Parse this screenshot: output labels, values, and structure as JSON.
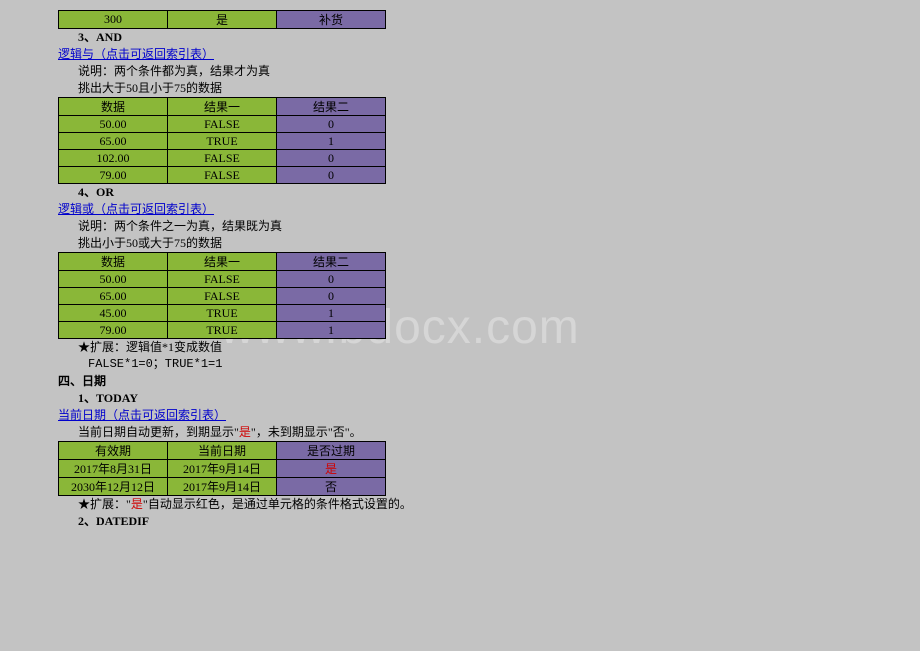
{
  "watermark": "www.bdocx.com",
  "topRow": {
    "c1": "300",
    "c2": "是",
    "c3": "补货"
  },
  "sec_and": {
    "heading": "3、AND",
    "link": "逻辑与（点击可返回索引表）",
    "desc": "说明：两个条件都为真，结果才为真",
    "rule": "挑出大于50且小于75的数据",
    "headers": [
      "数据",
      "结果一",
      "结果二"
    ],
    "rows": [
      {
        "d": "50.00",
        "r1": "FALSE",
        "r2": "0"
      },
      {
        "d": "65.00",
        "r1": "TRUE",
        "r2": "1"
      },
      {
        "d": "102.00",
        "r1": "FALSE",
        "r2": "0"
      },
      {
        "d": "79.00",
        "r1": "FALSE",
        "r2": "0"
      }
    ]
  },
  "sec_or": {
    "heading": "4、OR",
    "link": "逻辑或（点击可返回索引表）",
    "desc": "说明：两个条件之一为真，结果既为真",
    "rule": "挑出小于50或大于75的数据",
    "headers": [
      "数据",
      "结果一",
      "结果二"
    ],
    "rows": [
      {
        "d": "50.00",
        "r1": "FALSE",
        "r2": "0"
      },
      {
        "d": "65.00",
        "r1": "FALSE",
        "r2": "0"
      },
      {
        "d": "45.00",
        "r1": "TRUE",
        "r2": "1"
      },
      {
        "d": "79.00",
        "r1": "TRUE",
        "r2": "1"
      }
    ],
    "ext1": "★扩展：逻辑值*1变成数值",
    "ext2": "FALSE*1=0；TRUE*1=1"
  },
  "sec_date": {
    "title": "四、日期",
    "heading": "1、TODAY",
    "link": "当前日期（点击可返回索引表）",
    "desc_pre": "当前日期自动更新，到期显示\"",
    "desc_red": "是",
    "desc_post": "\"，未到期显示\"否\"。",
    "headers": [
      "有效期",
      "当前日期",
      "是否过期"
    ],
    "rows": [
      {
        "d": "2017年8月31日",
        "r1": "2017年9月14日",
        "r2": "是",
        "red": true
      },
      {
        "d": "2030年12月12日",
        "r1": "2017年9月14日",
        "r2": "否",
        "red": false
      }
    ],
    "ext_pre": "★扩展：\"",
    "ext_red": "是",
    "ext_post": "\"自动显示红色，是通过单元格的条件格式设置的。",
    "heading2": "2、DATEDIF"
  }
}
